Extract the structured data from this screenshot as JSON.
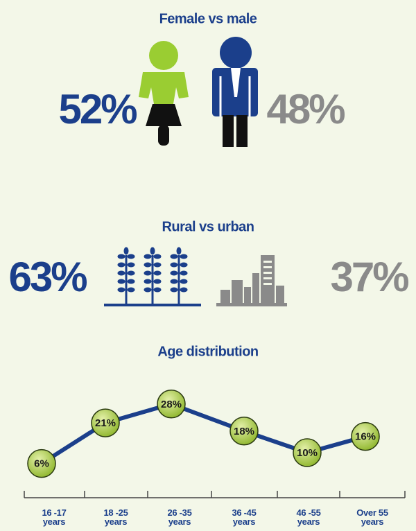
{
  "chart_data": [
    {
      "type": "pictogram",
      "title": "Female vs male",
      "values": [
        52,
        48
      ],
      "value_labels": [
        "52%",
        "48%"
      ],
      "colors": [
        "#1b3f8b",
        "#8a8a8a"
      ]
    },
    {
      "type": "pictogram",
      "title": "Rural vs urban",
      "values": [
        63,
        37
      ],
      "value_labels": [
        "63%",
        "37%"
      ],
      "colors": [
        "#1b3f8b",
        "#8a8a8a"
      ]
    },
    {
      "type": "line",
      "title": "Age distribution",
      "categories": [
        "16 -17 years",
        "18 -25 years",
        "26 -35 years",
        "36 -45 years",
        "46 -55 years",
        "Over 55 years"
      ],
      "values": [
        6,
        21,
        28,
        18,
        10,
        16
      ],
      "value_labels": [
        "6%",
        "21%",
        "28%",
        "18%",
        "10%",
        "16%"
      ],
      "color": "#1b3f8b",
      "marker_color": "#a4c93a"
    }
  ]
}
